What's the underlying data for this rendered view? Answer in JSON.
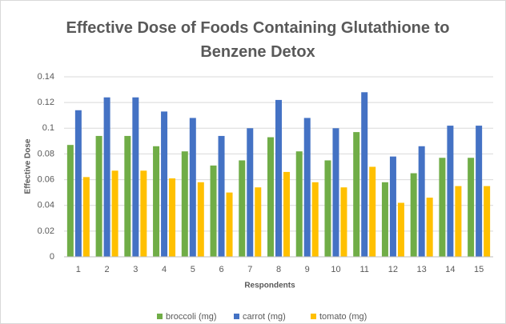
{
  "chart_data": {
    "type": "bar",
    "title": "Effective Dose of Foods Containing Glutathione to Benzene Detox",
    "xlabel": "Respondents",
    "ylabel": "Effective Dose",
    "categories": [
      "1",
      "2",
      "3",
      "4",
      "5",
      "6",
      "7",
      "8",
      "9",
      "10",
      "11",
      "12",
      "13",
      "14",
      "15"
    ],
    "series": [
      {
        "name": "broccoli (mg)",
        "color": "#70ad47",
        "values": [
          0.087,
          0.094,
          0.094,
          0.086,
          0.082,
          0.071,
          0.075,
          0.093,
          0.082,
          0.075,
          0.097,
          0.058,
          0.065,
          0.077,
          0.077
        ]
      },
      {
        "name": "carrot (mg)",
        "color": "#4472c4",
        "values": [
          0.114,
          0.124,
          0.124,
          0.113,
          0.108,
          0.094,
          0.1,
          0.122,
          0.108,
          0.1,
          0.128,
          0.078,
          0.086,
          0.102,
          0.102
        ]
      },
      {
        "name": "tomato (mg)",
        "color": "#ffc000",
        "values": [
          0.062,
          0.067,
          0.067,
          0.061,
          0.058,
          0.05,
          0.054,
          0.066,
          0.058,
          0.054,
          0.07,
          0.042,
          0.046,
          0.055,
          0.055
        ]
      }
    ],
    "ylim": [
      0,
      0.14
    ],
    "yticks": [
      0,
      0.02,
      0.04,
      0.06,
      0.08,
      0.1,
      0.12,
      0.14
    ],
    "grid": true,
    "legend": "bottom"
  }
}
